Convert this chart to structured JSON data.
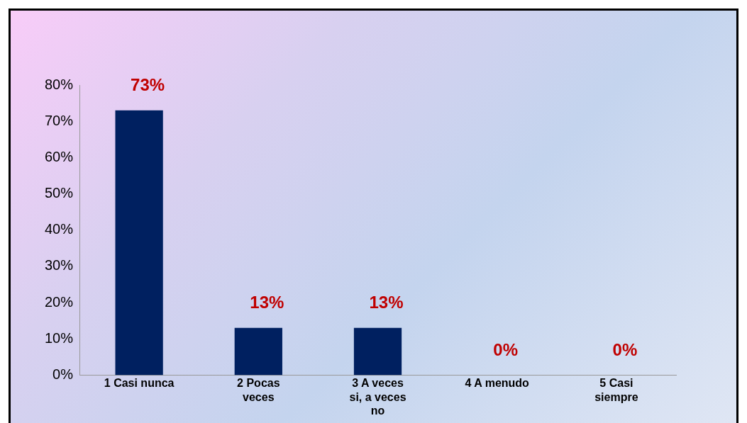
{
  "chart_data": {
    "type": "bar",
    "categories": [
      "1 Casi nunca",
      "2 Pocas veces",
      "3  A veces si, a veces no",
      "4  A menudo",
      "5  Casi siempre"
    ],
    "values": [
      73,
      13,
      13,
      0,
      0
    ],
    "color": "#002060",
    "value_labels": [
      "73%",
      "13%",
      "13%",
      "0%",
      "0%"
    ],
    "ylim": [
      0,
      80
    ],
    "yticks": [
      {
        "value": 0,
        "label": "0%"
      },
      {
        "value": 10,
        "label": "10%"
      },
      {
        "value": 20,
        "label": "20%"
      },
      {
        "value": 30,
        "label": "30%"
      },
      {
        "value": 40,
        "label": "40%"
      },
      {
        "value": 50,
        "label": "50%"
      },
      {
        "value": 60,
        "label": "60%"
      },
      {
        "value": 70,
        "label": "70%"
      },
      {
        "value": 80,
        "label": "80%"
      }
    ],
    "grid": false,
    "legend": false
  }
}
